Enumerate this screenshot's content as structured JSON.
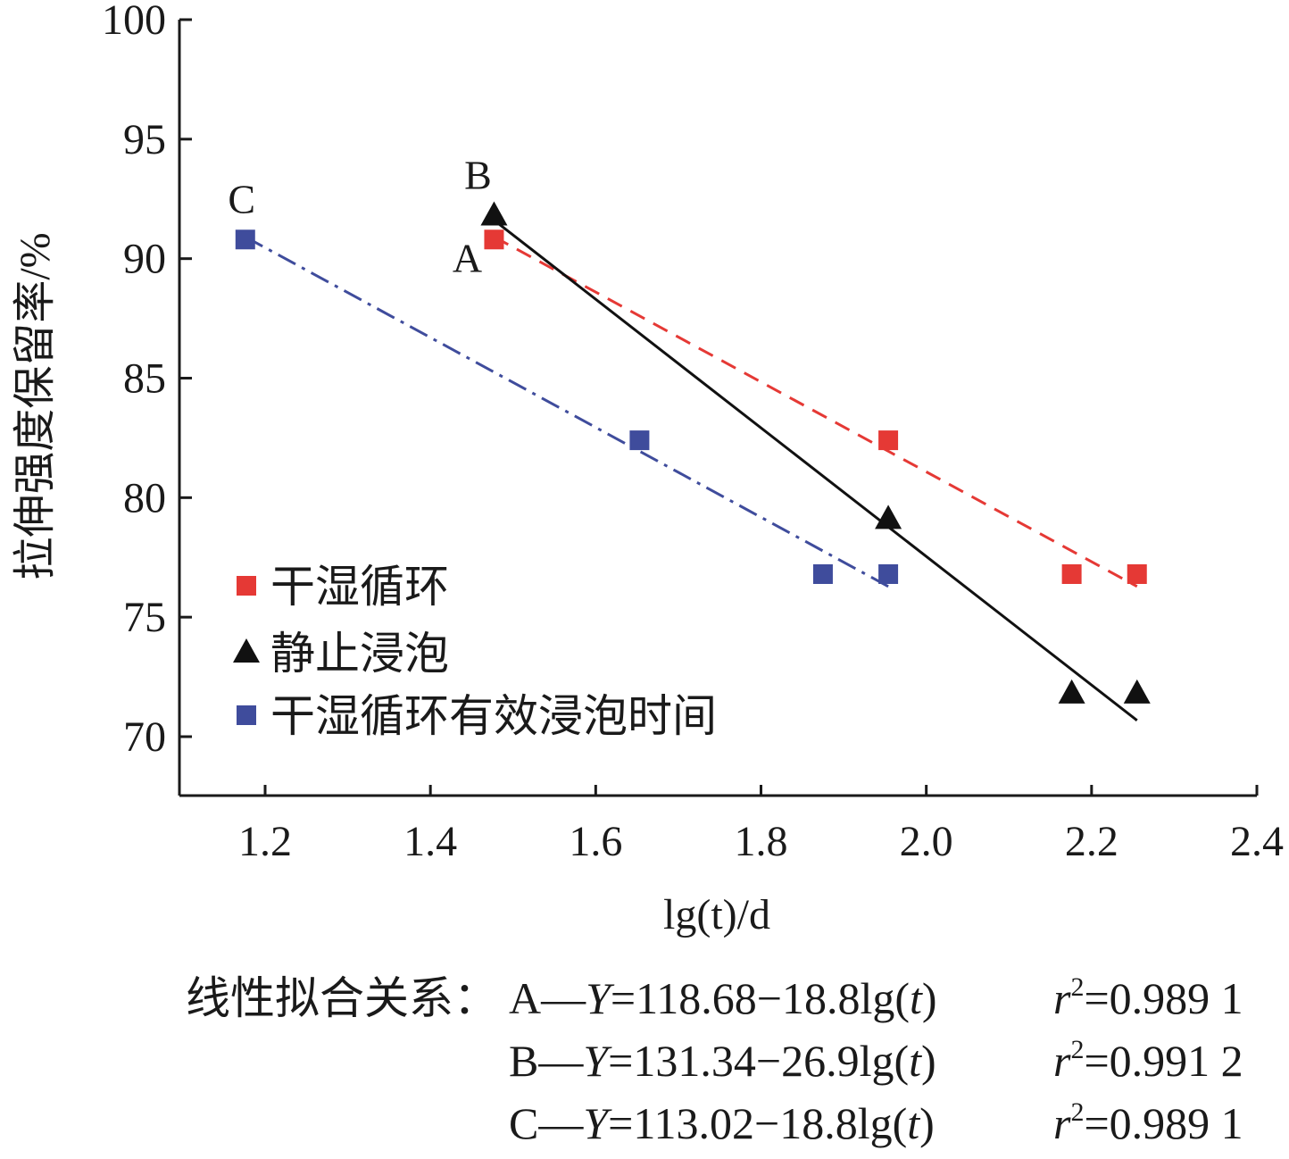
{
  "chart_data": {
    "type": "scatter",
    "xlabel": "lg(t)/d",
    "ylabel": "拉伸强度保留率/%",
    "xlim": [
      1.1,
      2.4
    ],
    "ylim": [
      67.5,
      100
    ],
    "x_ticks": [
      "1.2",
      "1.4",
      "1.6",
      "1.8",
      "2.0",
      "2.2",
      "2.4"
    ],
    "y_ticks": [
      "70",
      "75",
      "80",
      "85",
      "90",
      "95",
      "100"
    ],
    "grid": false,
    "legend_position": "lower-left",
    "series": [
      {
        "name": "干湿循环",
        "tag": "A",
        "marker": "square",
        "color": "#e53935",
        "line_style": "dashed",
        "points": [
          [
            1.477,
            90.8
          ],
          [
            1.954,
            82.4
          ],
          [
            2.176,
            76.8
          ],
          [
            2.255,
            76.8
          ]
        ],
        "fit": {
          "intercept": 118.68,
          "slope": -18.8,
          "x_range": [
            1.477,
            2.255
          ]
        }
      },
      {
        "name": "静止浸泡",
        "tag": "B",
        "marker": "triangle",
        "color": "#111111",
        "line_style": "solid",
        "points": [
          [
            1.477,
            91.8
          ],
          [
            1.954,
            79.1
          ],
          [
            2.176,
            71.8
          ],
          [
            2.255,
            71.8
          ]
        ],
        "fit": {
          "intercept": 131.34,
          "slope": -26.9,
          "x_range": [
            1.477,
            2.255
          ]
        }
      },
      {
        "name": "干湿循环有效浸泡时间",
        "tag": "C",
        "marker": "square",
        "color": "#3f4c9c",
        "line_style": "dash-dot",
        "points": [
          [
            1.176,
            90.8
          ],
          [
            1.653,
            82.4
          ],
          [
            1.875,
            76.8
          ],
          [
            1.954,
            76.8
          ]
        ],
        "fit": {
          "intercept": 113.02,
          "slope": -18.8,
          "x_range": [
            1.176,
            1.954
          ]
        }
      }
    ],
    "annotation_prefix": "线性拟合关系：",
    "fit_equations": [
      {
        "tag": "A",
        "dash": "—",
        "ylabel": "Y",
        "eq": "=118.68−18.8lg(",
        "var": "t",
        "close": ")",
        "r": "r",
        "sup": "2",
        "r2": "=0.989 1"
      },
      {
        "tag": "B",
        "dash": "—",
        "ylabel": "Y",
        "eq": "=131.34−26.9lg(",
        "var": "t",
        "close": ")",
        "r": "r",
        "sup": "2",
        "r2": "=0.991 2"
      },
      {
        "tag": "C",
        "dash": "—",
        "ylabel": "Y",
        "eq": "=113.02−18.8lg(",
        "var": "t",
        "close": ")",
        "r": "r",
        "sup": "2",
        "r2": "=0.989 1"
      }
    ]
  }
}
